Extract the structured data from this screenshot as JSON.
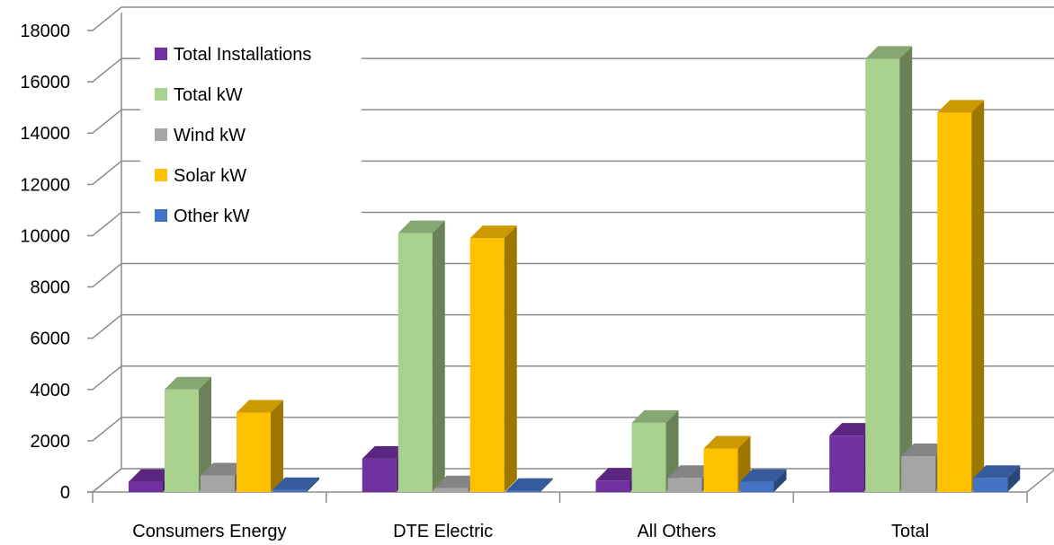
{
  "chart_data": {
    "type": "bar",
    "categories": [
      "Consumers Energy",
      "DTE Electric",
      "All Others",
      "Total"
    ],
    "series": [
      {
        "name": "Total Installations",
        "values": [
          400,
          1300,
          450,
          2200
        ],
        "color": "#7030A0"
      },
      {
        "name": "Total kW",
        "values": [
          4000,
          10100,
          2700,
          16900
        ],
        "color": "#A9D18E"
      },
      {
        "name": "Wind kW",
        "values": [
          650,
          150,
          550,
          1400
        ],
        "color": "#A5A5A5"
      },
      {
        "name": "Solar kW",
        "values": [
          3100,
          9900,
          1700,
          14800
        ],
        "color": "#FFC000"
      },
      {
        "name": "Other kW",
        "values": [
          80,
          50,
          400,
          550
        ],
        "color": "#4472C4"
      }
    ],
    "y_ticks": [
      "0",
      "2000",
      "4000",
      "6000",
      "8000",
      "10000",
      "12000",
      "14000",
      "16000",
      "18000"
    ],
    "ylim": [
      0,
      18000
    ],
    "grid": true,
    "legend_position": "top-left"
  }
}
